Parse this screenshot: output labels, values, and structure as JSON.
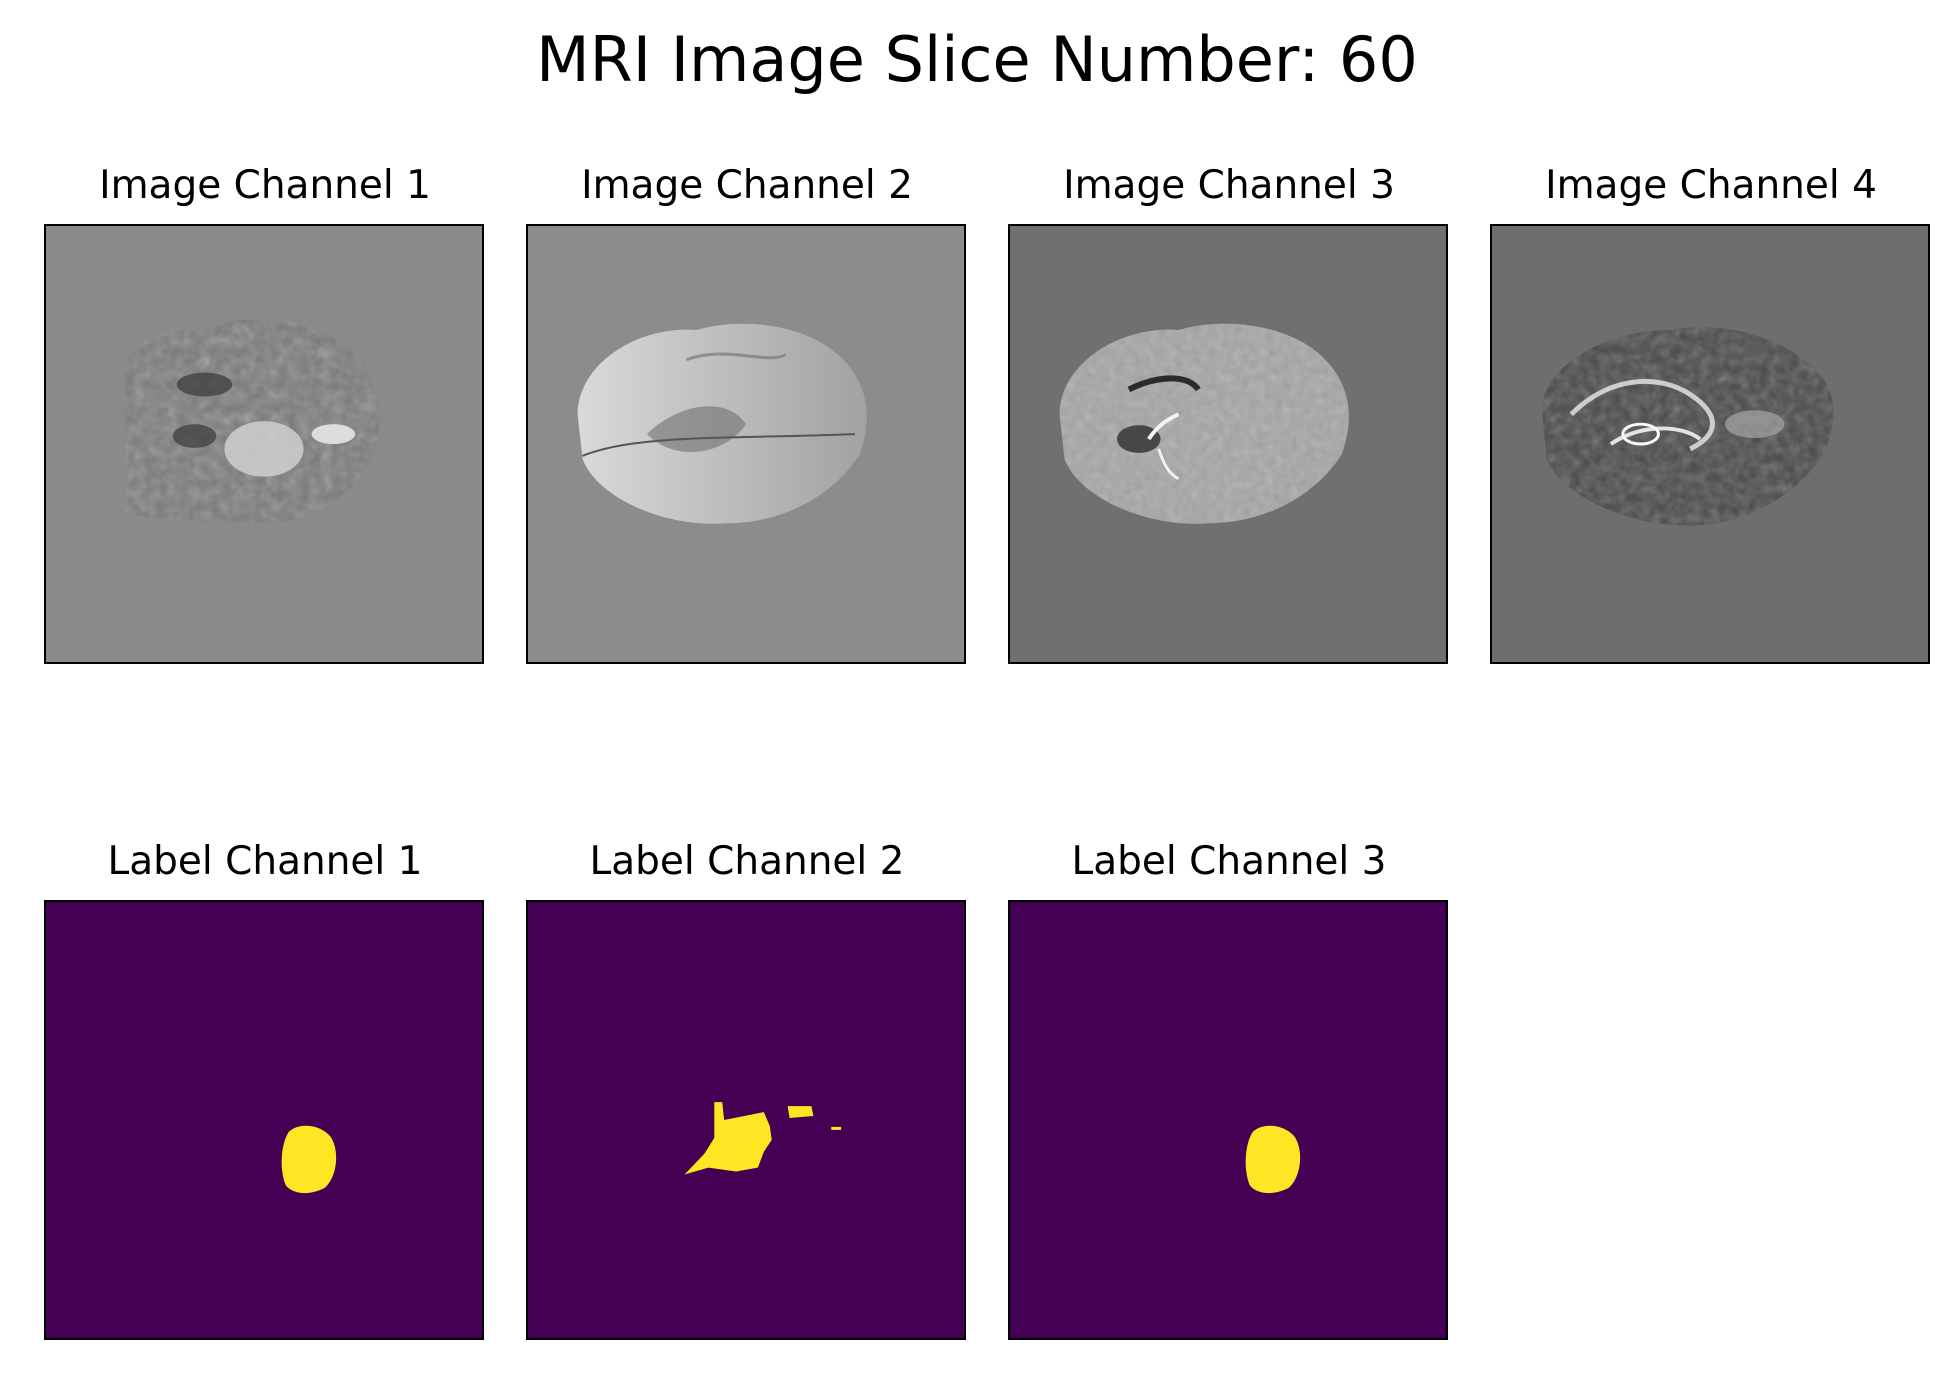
{
  "figure": {
    "title": "MRI Image Slice Number: 60"
  },
  "image_panels": [
    {
      "label": "Image Channel 1",
      "background_color": "#8a8a8a",
      "icon": "brain-mri-flair"
    },
    {
      "label": "Image Channel 2",
      "background_color": "#8c8c8c",
      "icon": "brain-mri-t1"
    },
    {
      "label": "Image Channel 3",
      "background_color": "#707070",
      "icon": "brain-mri-t1ce"
    },
    {
      "label": "Image Channel 4",
      "background_color": "#6e6e6e",
      "icon": "brain-mri-t2"
    }
  ],
  "label_panels": [
    {
      "label": "Label Channel 1",
      "background_color": "#440154",
      "mask_color": "#fde725",
      "icon": "tumor-mask"
    },
    {
      "label": "Label Channel 2",
      "background_color": "#440154",
      "mask_color": "#fde725",
      "icon": "tumor-mask"
    },
    {
      "label": "Label Channel 3",
      "background_color": "#440154",
      "mask_color": "#fde725",
      "icon": "tumor-mask"
    }
  ]
}
